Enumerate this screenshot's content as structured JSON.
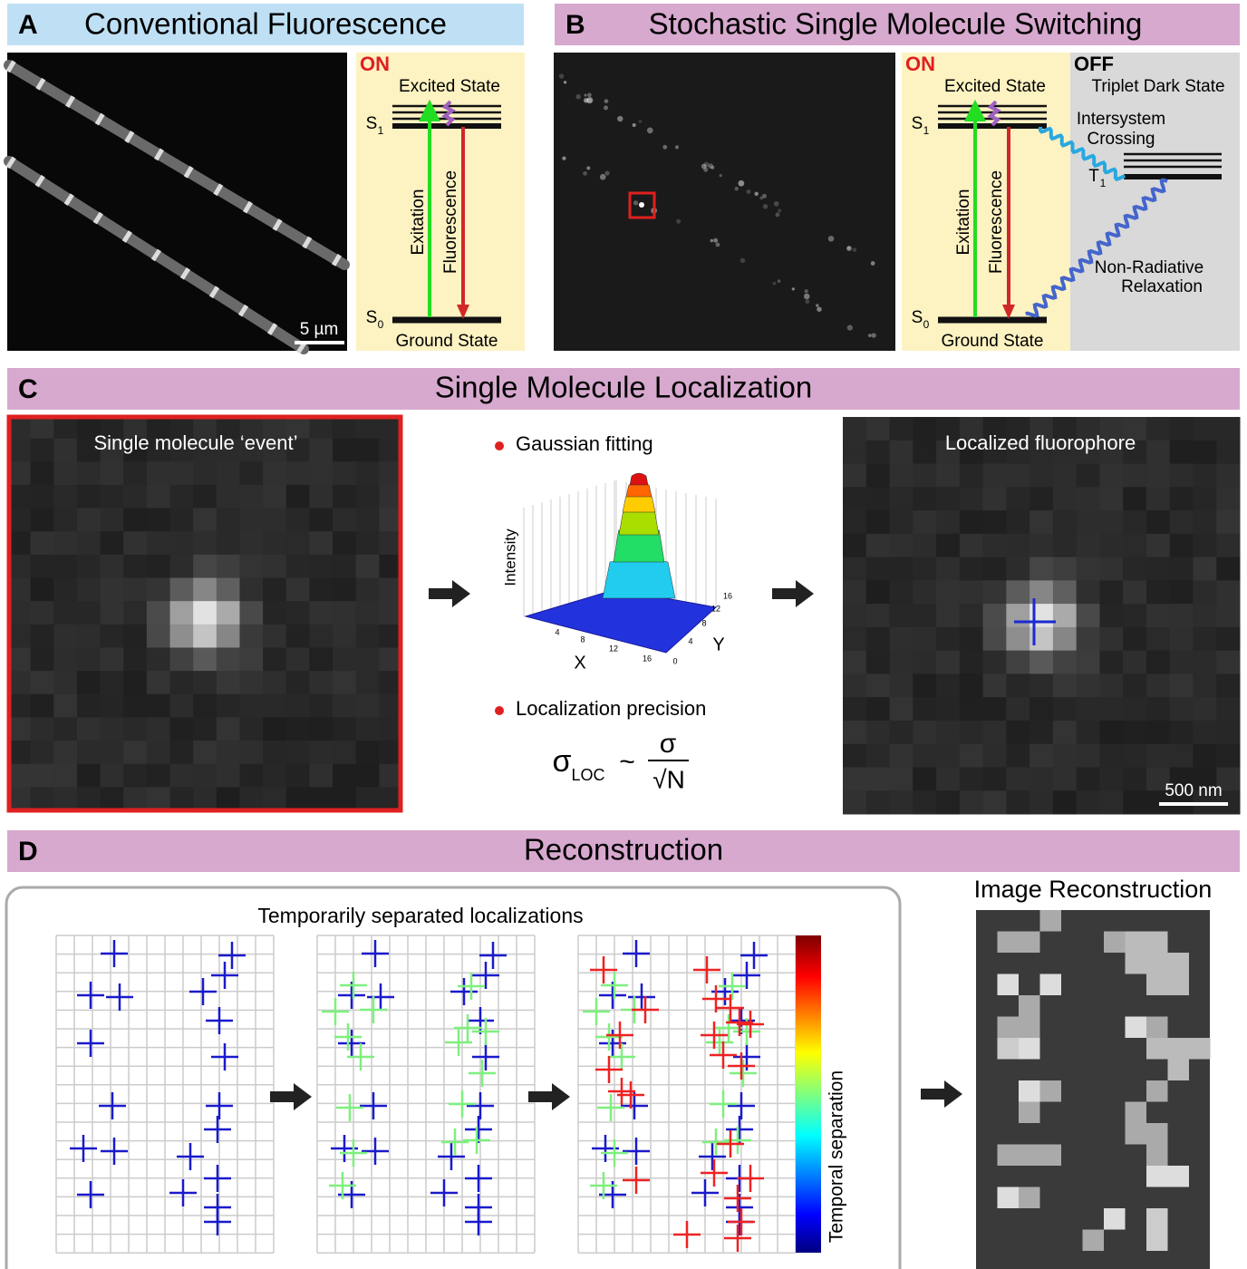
{
  "panel_a": {
    "letter": "A",
    "title": "Conventional Fluorescence",
    "scale_bar": "5 µm",
    "diagram": {
      "state": "ON",
      "excited_state": "Excited State",
      "s1": {
        "label": "S",
        "sub": "1"
      },
      "s0": {
        "label": "S",
        "sub": "0"
      },
      "excitation": "Exitation",
      "fluorescence": "Fluorescence",
      "ground_state": "Ground State"
    }
  },
  "panel_b": {
    "letter": "B",
    "title": "Stochastic Single Molecule Switching",
    "diagram": {
      "state": "ON",
      "excited_state": "Excited State",
      "s1": {
        "label": "S",
        "sub": "1"
      },
      "s0": {
        "label": "S",
        "sub": "0"
      },
      "excitation": "Exitation",
      "fluorescence": "Fluorescence",
      "ground_state": "Ground State"
    },
    "off": {
      "state": "OFF",
      "triplet": "Triplet Dark State",
      "crossing": [
        "Intersystem",
        "Crossing"
      ],
      "t1": {
        "label": "T",
        "sub": "1"
      },
      "relaxation": [
        "Non-Radiative",
        "Relaxation"
      ]
    }
  },
  "panel_c": {
    "letter": "C",
    "title": "Single Molecule Localization",
    "event": "Single molecule ‘event’",
    "fitting": "Gaussian fitting",
    "plot": {
      "z_label": "Intensity",
      "x_label": "X",
      "y_label": "Y",
      "x_ticks": [
        4,
        8,
        12,
        16
      ],
      "y_ticks": [
        0,
        4,
        8,
        12,
        16
      ]
    },
    "precision": "Localization precision",
    "formula": {
      "sigma": "σ",
      "sub": "LOC",
      "approx": "~",
      "numerator": "σ",
      "denominator": "√N"
    },
    "localized": "Localized fluorophore",
    "scale_bar": "500 nm"
  },
  "panel_d": {
    "letter": "D",
    "title": "Reconstruction",
    "localizations": "Temporarily separated localizations",
    "colorbar": "Temporal separation",
    "image": "Image Reconstruction"
  }
}
